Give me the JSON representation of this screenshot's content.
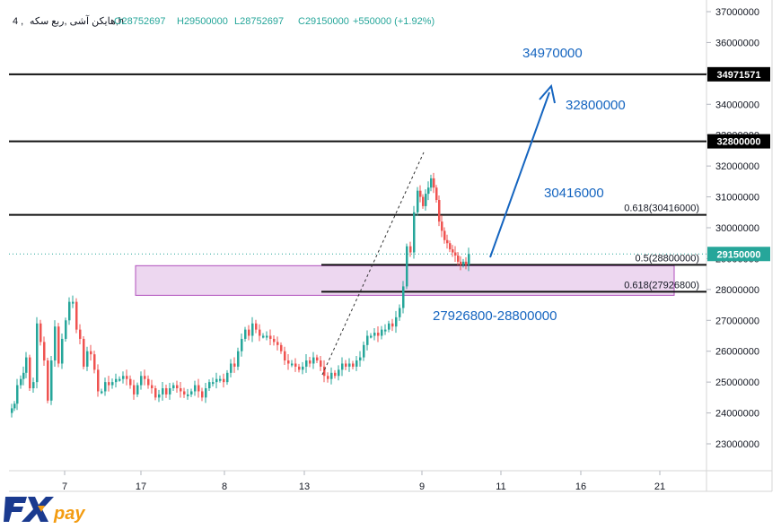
{
  "legend": {
    "symbol": "هایکن آشی ,ربع سکه,h",
    "interval_prefix": "4 ,",
    "open": "O28752697",
    "high": "H29500000",
    "low": "L28752697",
    "close": "C29150000",
    "change": "+550000 (+1.92%)"
  },
  "logo": {
    "fx": "FX",
    "pay": "pay"
  },
  "colors": {
    "up": "#26a69a",
    "down": "#ef5350",
    "annotation": "#1565c0",
    "zone_fill": "#e8cdec",
    "zone_border": "#b04fbd",
    "price_badge": "#26a69a"
  },
  "chart_data": {
    "type": "candlestick",
    "y_ticks": [
      "37000000",
      "36000000",
      "35000000",
      "34000000",
      "33000000",
      "32000000",
      "31000000",
      "30000000",
      "29000000",
      "28000000",
      "27000000",
      "26000000",
      "25000000",
      "24000000",
      "23000000"
    ],
    "x_ticks": [
      "7",
      "17",
      "8",
      "13",
      "9",
      "11",
      "16",
      "21"
    ],
    "ylim": [
      22200000,
      37200000
    ],
    "price_labels": [
      {
        "label": "34971571",
        "value": 34971571,
        "style": "dark"
      },
      {
        "label": "32800000",
        "value": 32800000,
        "style": "dark"
      },
      {
        "label": "29150000",
        "value": 29150000,
        "style": "green"
      }
    ],
    "horizontal_levels": [
      {
        "value": 34971571,
        "extent": "full"
      },
      {
        "value": 32800000,
        "extent": "full"
      },
      {
        "value": 30416000,
        "extent": "full",
        "label": "0.618(30416000)"
      },
      {
        "value": 28800000,
        "extent": "right",
        "label": "0.5(28800000)"
      },
      {
        "value": 27926800,
        "extent": "right",
        "label": "0.618(27926800)"
      }
    ],
    "zone": {
      "low": 27926800,
      "high": 28800000
    },
    "annotations": [
      "34970000",
      "32800000",
      "30416000",
      "27926800-28800000"
    ],
    "close_points": [
      [
        0,
        24000000
      ],
      [
        6,
        24300000
      ],
      [
        10,
        24900000
      ],
      [
        16,
        25300000
      ],
      [
        20,
        25800000
      ],
      [
        24,
        24800000
      ],
      [
        28,
        25000000
      ],
      [
        32,
        26900000
      ],
      [
        36,
        26300000
      ],
      [
        40,
        25700000
      ],
      [
        44,
        24400000
      ],
      [
        48,
        25700000
      ],
      [
        52,
        26800000
      ],
      [
        56,
        25600000
      ],
      [
        60,
        26400000
      ],
      [
        64,
        27000000
      ],
      [
        68,
        27600000
      ],
      [
        72,
        27600000
      ],
      [
        76,
        26700000
      ],
      [
        80,
        26400000
      ],
      [
        84,
        25500000
      ],
      [
        88,
        26000000
      ],
      [
        92,
        25900000
      ],
      [
        96,
        25400000
      ],
      [
        100,
        24700000
      ],
      [
        104,
        24700000
      ],
      [
        108,
        25000000
      ],
      [
        112,
        24900000
      ],
      [
        116,
        25000000
      ],
      [
        120,
        25100000
      ],
      [
        124,
        25100000
      ],
      [
        128,
        25200000
      ],
      [
        132,
        25100000
      ],
      [
        136,
        24900000
      ],
      [
        140,
        24600000
      ],
      [
        144,
        24900000
      ],
      [
        148,
        25200000
      ],
      [
        152,
        25100000
      ],
      [
        156,
        24900000
      ],
      [
        160,
        24800000
      ],
      [
        164,
        24500000
      ],
      [
        168,
        24600000
      ],
      [
        172,
        24800000
      ],
      [
        176,
        24600000
      ],
      [
        180,
        24800000
      ],
      [
        184,
        24900000
      ],
      [
        188,
        24800000
      ],
      [
        192,
        24700000
      ],
      [
        196,
        24600000
      ],
      [
        200,
        24600000
      ],
      [
        204,
        24700000
      ],
      [
        208,
        24900000
      ],
      [
        212,
        24700000
      ],
      [
        216,
        24500000
      ],
      [
        220,
        24800000
      ],
      [
        224,
        25000000
      ],
      [
        228,
        25000000
      ],
      [
        232,
        25100000
      ],
      [
        236,
        25100000
      ],
      [
        240,
        25000000
      ],
      [
        244,
        25300000
      ],
      [
        248,
        25600000
      ],
      [
        252,
        25500000
      ],
      [
        256,
        26000000
      ],
      [
        260,
        26400000
      ],
      [
        264,
        26700000
      ],
      [
        268,
        26500000
      ],
      [
        272,
        26900000
      ],
      [
        276,
        26700000
      ],
      [
        280,
        26500000
      ],
      [
        284,
        26500000
      ],
      [
        288,
        26500000
      ],
      [
        292,
        26400000
      ],
      [
        296,
        26300000
      ],
      [
        300,
        26200000
      ],
      [
        304,
        26000000
      ],
      [
        308,
        25700000
      ],
      [
        312,
        25600000
      ],
      [
        316,
        25600000
      ],
      [
        320,
        25500000
      ],
      [
        324,
        25400000
      ],
      [
        328,
        25500000
      ],
      [
        332,
        25700000
      ],
      [
        336,
        25600000
      ],
      [
        340,
        25800000
      ],
      [
        344,
        25700000
      ],
      [
        348,
        25500000
      ],
      [
        352,
        25200000
      ],
      [
        356,
        25100000
      ],
      [
        360,
        25300000
      ],
      [
        364,
        25200000
      ],
      [
        368,
        25400000
      ],
      [
        372,
        25600000
      ],
      [
        376,
        25500000
      ],
      [
        380,
        25600000
      ],
      [
        384,
        25500000
      ],
      [
        388,
        25700000
      ],
      [
        392,
        25800000
      ],
      [
        396,
        26200000
      ],
      [
        400,
        26500000
      ],
      [
        404,
        26500000
      ],
      [
        408,
        26600000
      ],
      [
        412,
        26500000
      ],
      [
        416,
        26700000
      ],
      [
        420,
        26700000
      ],
      [
        424,
        26900000
      ],
      [
        428,
        26800000
      ],
      [
        432,
        27100000
      ],
      [
        436,
        27400000
      ],
      [
        440,
        28100000
      ],
      [
        444,
        29400000
      ],
      [
        448,
        29200000
      ],
      [
        452,
        30500000
      ],
      [
        455,
        31200000
      ],
      [
        458,
        31000000
      ],
      [
        461,
        30700000
      ],
      [
        464,
        31100000
      ],
      [
        467,
        31300000
      ],
      [
        470,
        31600000
      ],
      [
        473,
        31300000
      ],
      [
        476,
        30900000
      ],
      [
        479,
        30200000
      ],
      [
        482,
        29900000
      ],
      [
        485,
        29600000
      ],
      [
        488,
        29500000
      ],
      [
        491,
        29300000
      ],
      [
        494,
        29200000
      ],
      [
        497,
        29100000
      ],
      [
        500,
        28900000
      ],
      [
        503,
        28800000
      ],
      [
        506,
        28900000
      ],
      [
        509,
        28800000
      ],
      [
        512,
        29150000
      ]
    ]
  }
}
